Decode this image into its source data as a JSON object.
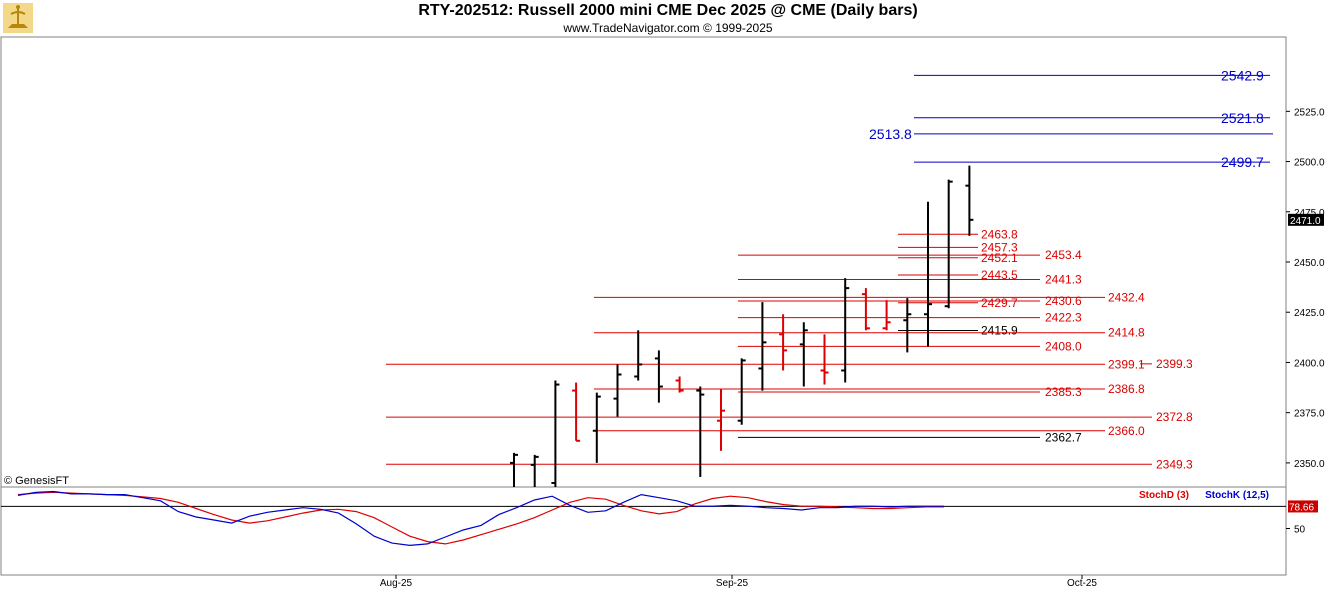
{
  "header": {
    "title": "RTY-202512:  Russell 2000 mini CME Dec 2025 @ CME  (Daily bars)",
    "subtitle": "www.TradeNavigator.com © 1999-2025",
    "watermark": "© GenesisFT"
  },
  "chart_data": [
    {
      "type": "ohlc",
      "ylim": [
        2338,
        2562
      ],
      "y_ticks": [
        "2350.0",
        "2375.0",
        "2400.0",
        "2425.0",
        "2450.0",
        "2475.0",
        "2500.0",
        "2525.0"
      ],
      "last_price": "2471.0",
      "x_ticks": [
        "Aug-25",
        "Sep-25",
        "Oct-25"
      ],
      "bars": [
        {
          "o": 2350,
          "h": 2355,
          "l": 2338,
          "c": 2354,
          "color": "#000000"
        },
        {
          "o": 2349,
          "h": 2354,
          "l": 2338,
          "c": 2353,
          "color": "#000000"
        },
        {
          "o": 2340,
          "h": 2391,
          "l": 2338,
          "c": 2389,
          "color": "#000000"
        },
        {
          "o": 2386,
          "h": 2390,
          "l": 2361,
          "c": 2361,
          "color": "#dd0000"
        },
        {
          "o": 2366,
          "h": 2385,
          "l": 2350,
          "c": 2383,
          "color": "#000000"
        },
        {
          "o": 2382,
          "h": 2399,
          "l": 2373,
          "c": 2394,
          "color": "#000000"
        },
        {
          "o": 2393,
          "h": 2416,
          "l": 2391,
          "c": 2399,
          "color": "#000000"
        },
        {
          "o": 2402,
          "h": 2406,
          "l": 2380,
          "c": 2388,
          "color": "#000000"
        },
        {
          "o": 2391,
          "h": 2393,
          "l": 2385,
          "c": 2386,
          "color": "#dd0000"
        },
        {
          "o": 2386,
          "h": 2388,
          "l": 2343,
          "c": 2384,
          "color": "#000000"
        },
        {
          "o": 2371,
          "h": 2387,
          "l": 2356,
          "c": 2376,
          "color": "#dd0000"
        },
        {
          "o": 2371,
          "h": 2402,
          "l": 2369,
          "c": 2401,
          "color": "#000000"
        },
        {
          "o": 2397,
          "h": 2430,
          "l": 2386,
          "c": 2410,
          "color": "#000000"
        },
        {
          "o": 2414,
          "h": 2424,
          "l": 2396,
          "c": 2406,
          "color": "#dd0000"
        },
        {
          "o": 2409,
          "h": 2420,
          "l": 2388,
          "c": 2416,
          "color": "#000000"
        },
        {
          "o": 2396,
          "h": 2414,
          "l": 2389,
          "c": 2395,
          "color": "#dd0000"
        },
        {
          "o": 2396,
          "h": 2442,
          "l": 2390,
          "c": 2437,
          "color": "#000000"
        },
        {
          "o": 2434,
          "h": 2437,
          "l": 2416,
          "c": 2417,
          "color": "#dd0000"
        },
        {
          "o": 2417,
          "h": 2431,
          "l": 2416,
          "c": 2420,
          "color": "#dd0000"
        },
        {
          "o": 2421,
          "h": 2432,
          "l": 2405,
          "c": 2424,
          "color": "#000000"
        },
        {
          "o": 2424,
          "h": 2480,
          "l": 2408,
          "c": 2429,
          "color": "#000000"
        },
        {
          "o": 2428,
          "h": 2491,
          "l": 2427,
          "c": 2490,
          "color": "#000000"
        },
        {
          "o": 2488,
          "h": 2498,
          "l": 2463,
          "c": 2471,
          "color": "#000000"
        }
      ],
      "levels": [
        {
          "value": 2542.9,
          "label": "2542.9",
          "color": "#0000cc",
          "big": true
        },
        {
          "value": 2521.8,
          "label": "2521.8",
          "color": "#0000cc",
          "big": true
        },
        {
          "value": 2513.8,
          "label": "2513.8",
          "color": "#0000cc",
          "big": true,
          "label_left": true
        },
        {
          "value": 2499.7,
          "label": "2499.7",
          "color": "#0000cc",
          "big": true
        },
        {
          "value": 2463.8,
          "label": "2463.8",
          "color": "#dd0000"
        },
        {
          "value": 2457.3,
          "label": "2457.3",
          "color": "#dd0000"
        },
        {
          "value": 2453.4,
          "label": "2453.4",
          "color": "#dd0000"
        },
        {
          "value": 2452.1,
          "label": "2452.1",
          "color": "#dd0000"
        },
        {
          "value": 2443.5,
          "label": "2443.5",
          "color": "#dd0000"
        },
        {
          "value": 2441.3,
          "label": "2441.3",
          "color": "#dd0000"
        },
        {
          "value": 2432.4,
          "label": "2432.4",
          "color": "#dd0000"
        },
        {
          "value": 2430.6,
          "label": "2430.6",
          "color": "#dd0000"
        },
        {
          "value": 2429.7,
          "label": "2429.7",
          "color": "#dd0000"
        },
        {
          "value": 2422.3,
          "label": "2422.3",
          "color": "#dd0000"
        },
        {
          "value": 2415.9,
          "label": "2415.9",
          "color": "#000000"
        },
        {
          "value": 2414.8,
          "label": "2414.8",
          "color": "#dd0000"
        },
        {
          "value": 2408.0,
          "label": "2408.0",
          "color": "#dd0000"
        },
        {
          "value": 2399.1,
          "label": "2399.1",
          "color": "#dd0000"
        },
        {
          "value": 2399.3,
          "label": "2399.3",
          "color": "#dd0000"
        },
        {
          "value": 2386.8,
          "label": "2386.8",
          "color": "#dd0000"
        },
        {
          "value": 2385.3,
          "label": "2385.3",
          "color": "#dd0000"
        },
        {
          "value": 2372.8,
          "label": "2372.8",
          "color": "#dd0000"
        },
        {
          "value": 2366.0,
          "label": "2366.0",
          "color": "#dd0000"
        },
        {
          "value": 2362.7,
          "label": "2362.7",
          "color": "#000000"
        },
        {
          "value": 2349.3,
          "label": "2349.3",
          "color": "#dd0000"
        }
      ]
    },
    {
      "type": "line",
      "ylim": [
        0,
        100
      ],
      "y_ticks": [
        "50"
      ],
      "last_value": "78.66",
      "series": [
        {
          "name": "StochD (3)",
          "color": "#dd0000",
          "values": [
            94,
            96,
            97,
            96,
            95,
            94,
            93,
            91,
            89,
            84,
            76,
            68,
            61,
            57,
            60,
            65,
            70,
            74,
            75,
            72,
            64,
            52,
            40,
            33,
            30,
            35,
            42,
            49,
            56,
            64,
            74,
            84,
            90,
            88,
            80,
            73,
            69,
            72,
            82,
            89,
            92,
            90,
            85,
            81,
            79,
            79,
            78,
            77,
            76,
            76,
            77,
            78,
            78
          ]
        },
        {
          "name": "StochK (12,5)",
          "color": "#0000cc",
          "values": [
            93,
            97,
            98,
            95,
            95,
            94,
            94,
            90,
            86,
            72,
            65,
            61,
            57,
            66,
            71,
            74,
            77,
            75,
            70,
            56,
            40,
            31,
            28,
            30,
            39,
            48,
            54,
            68,
            77,
            87,
            92,
            80,
            71,
            73,
            84,
            94,
            90,
            86,
            79,
            79,
            80,
            79,
            77,
            76,
            74,
            77,
            77,
            79,
            79,
            78,
            79,
            79,
            79
          ]
        }
      ]
    }
  ]
}
